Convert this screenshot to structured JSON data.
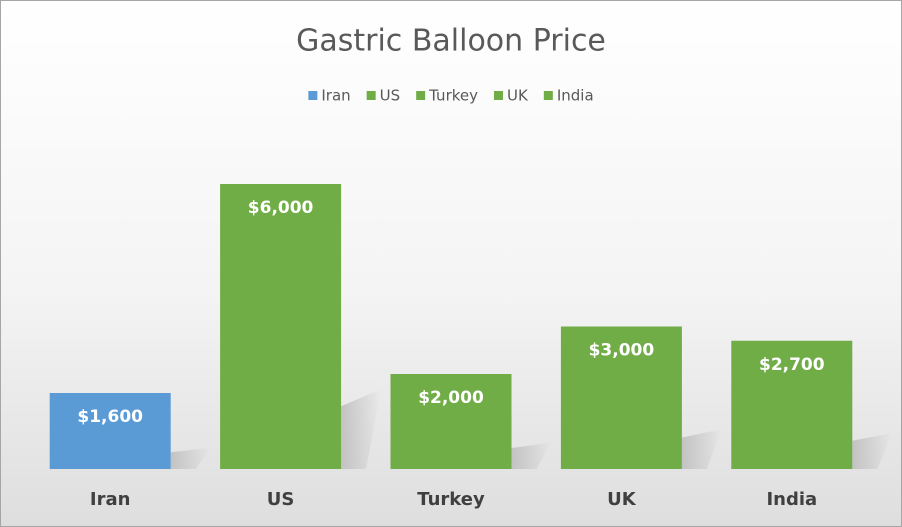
{
  "chart_data": {
    "type": "bar",
    "title": "Gastric Balloon Price",
    "categories": [
      "Iran",
      "US",
      "Turkey",
      "UK",
      "India"
    ],
    "values": [
      1600,
      6000,
      2000,
      3000,
      2700
    ],
    "value_labels": [
      "$1,600",
      "$6,000",
      "$2,000",
      "$3,000",
      "$2,700"
    ],
    "colors": [
      "#5b9bd5",
      "#70ad47",
      "#70ad47",
      "#70ad47",
      "#70ad47"
    ]
  }
}
